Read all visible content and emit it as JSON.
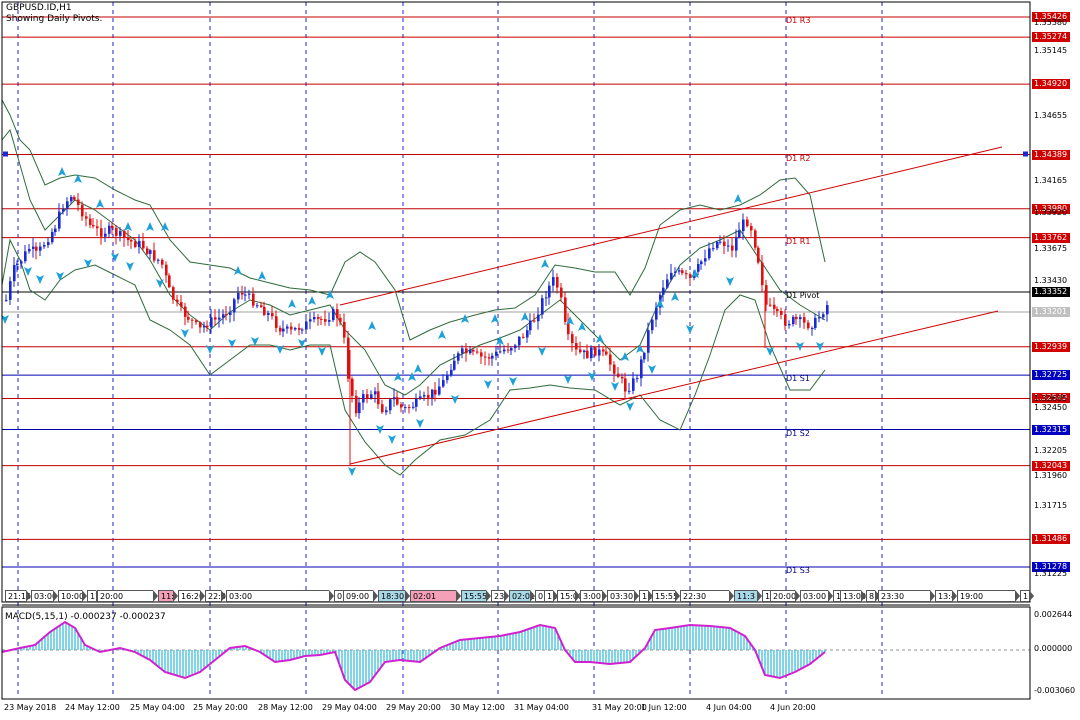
{
  "header": {
    "symbol": "GBPUSD.ID,H1",
    "subtitle": "Showing Daily Pivots."
  },
  "pivots": [
    {
      "name": "D1 R3",
      "price": 1.35426
    },
    {
      "name": "D1 R2",
      "price": 1.34389
    },
    {
      "name": "D1 R1",
      "price": 1.33762
    },
    {
      "name": "D1 Pivot",
      "price": 1.33352
    },
    {
      "name": "D1 S1",
      "price": 1.32725
    },
    {
      "name": "D1 S2",
      "price": 1.32315
    },
    {
      "name": "D1 S3",
      "price": 1.31278
    }
  ],
  "price_labels": [
    {
      "text": "1.35426",
      "price": 1.35426,
      "bg": "#d00000",
      "fg": "#ffffff"
    },
    {
      "text": "1.35274",
      "price": 1.35274,
      "bg": "#d00000",
      "fg": "#ffffff"
    },
    {
      "text": "1.34920",
      "price": 1.3492,
      "bg": "#d00000",
      "fg": "#ffffff"
    },
    {
      "text": "1.34389",
      "price": 1.34389,
      "bg": "#d00000",
      "fg": "#ffffff"
    },
    {
      "text": "1.33980",
      "price": 1.3398,
      "bg": "#d00000",
      "fg": "#ffffff"
    },
    {
      "text": "1.33762",
      "price": 1.33762,
      "bg": "#d00000",
      "fg": "#ffffff"
    },
    {
      "text": "1.33352",
      "price": 1.33352,
      "bg": "#000000",
      "fg": "#ffffff"
    },
    {
      "text": "1.33201",
      "price": 1.33201,
      "bg": "#c0c0c0",
      "fg": "#ffffff"
    },
    {
      "text": "1.32939",
      "price": 1.32939,
      "bg": "#d00000",
      "fg": "#ffffff"
    },
    {
      "text": "1.32725",
      "price": 1.32725,
      "bg": "#0000c0",
      "fg": "#ffffff"
    },
    {
      "text": "1.32549",
      "price": 1.32549,
      "bg": "#d00000",
      "fg": "#ffffff"
    },
    {
      "text": "1.32315",
      "price": 1.32315,
      "bg": "#0000c0",
      "fg": "#ffffff"
    },
    {
      "text": "1.32043",
      "price": 1.32043,
      "bg": "#d00000",
      "fg": "#ffffff"
    },
    {
      "text": "1.31486",
      "price": 1.31486,
      "bg": "#d00000",
      "fg": "#ffffff"
    },
    {
      "text": "1.31278",
      "price": 1.31278,
      "bg": "#0000c0",
      "fg": "#ffffff"
    }
  ],
  "price_ticks": [
    "1.35380",
    "1.35145",
    "1.34655",
    "1.34165",
    "1.33920",
    "1.33675",
    "1.33430",
    "1.32695",
    "1.32450",
    "1.32205",
    "1.31960",
    "1.31715",
    "1.31225"
  ],
  "red_levels": [
    1.35426,
    1.35274,
    1.3492,
    1.34389,
    1.3398,
    1.33762,
    1.32939,
    1.32549,
    1.32043,
    1.31486
  ],
  "blue_levels": [
    1.32725,
    1.32315,
    1.31278
  ],
  "black_levels": [
    1.33352
  ],
  "gray_levels": [
    1.33201
  ],
  "dates": [
    "23 May 2018",
    "24 May 12:00",
    "25 May 04:00",
    "25 May 20:00",
    "28 May 12:00",
    "29 May 04:00",
    "29 May 20:00",
    "30 May 12:00",
    "31 May 04:00",
    "31 May 20:00",
    "1 Jun 12:00",
    "4 Jun 04:00",
    "4 Jun 20:00"
  ],
  "time_tags": [
    {
      "text": "21:15",
      "bg": "#ffffff"
    },
    {
      "text": "03:00",
      "bg": "#ffffff"
    },
    {
      "text": "10:00",
      "bg": "#ffffff"
    },
    {
      "text": "17",
      "bg": "#ffffff"
    },
    {
      "text": "20:00",
      "bg": "#ffffff"
    },
    {
      "text": "11:",
      "bg": "#f4a0b8"
    },
    {
      "text": "16:20",
      "bg": "#ffffff"
    },
    {
      "text": "22:3",
      "bg": "#ffffff"
    },
    {
      "text": "03:00",
      "bg": "#ffffff"
    },
    {
      "text": "0",
      "bg": "#ffffff"
    },
    {
      "text": "09:00",
      "bg": "#ffffff"
    },
    {
      "text": "18:30",
      "bg": "#a8d8e8"
    },
    {
      "text": "02:01",
      "bg": "#f4a0b8"
    },
    {
      "text": "15:55",
      "bg": "#a8d8e8"
    },
    {
      "text": "23",
      "bg": "#ffffff"
    },
    {
      "text": "02:01",
      "bg": "#a8d8e8"
    },
    {
      "text": "0",
      "bg": "#ffffff"
    },
    {
      "text": "11",
      "bg": "#ffffff"
    },
    {
      "text": "15:00",
      "bg": "#ffffff"
    },
    {
      "text": "3:00",
      "bg": "#ffffff"
    },
    {
      "text": "03:30",
      "bg": "#ffffff"
    },
    {
      "text": "11:",
      "bg": "#ffffff"
    },
    {
      "text": "15:55",
      "bg": "#ffffff"
    },
    {
      "text": "22:30",
      "bg": "#ffffff"
    },
    {
      "text": "11:3",
      "bg": "#a8d8e8"
    },
    {
      "text": "1",
      "bg": "#ffffff"
    },
    {
      "text": "20:00",
      "bg": "#ffffff"
    },
    {
      "text": "03:00",
      "bg": "#ffffff"
    },
    {
      "text": "1",
      "bg": "#ffffff"
    },
    {
      "text": "13:00",
      "bg": "#ffffff"
    },
    {
      "text": "8:3",
      "bg": "#ffffff"
    },
    {
      "text": "23:30",
      "bg": "#ffffff"
    },
    {
      "text": "13:4",
      "bg": "#ffffff"
    },
    {
      "text": "19:00",
      "bg": "#ffffff"
    },
    {
      "text": "1",
      "bg": "#ffffff"
    }
  ],
  "macd": {
    "label": "MACD(5,15,1) -0.000237 -0.000237",
    "ticks": [
      "0.002644",
      "0.000000",
      "-0.003060"
    ]
  },
  "colors": {
    "bull": "#1a2ad0",
    "bear": "#e01010",
    "band": "#2e6b3a",
    "trend": "#d00000",
    "arrow": "#1ea0d8",
    "macd_hist": "#3cc0d8",
    "macd_line": "#d020d0"
  },
  "icons": [
    "fractal-up-arrow-icon",
    "fractal-down-arrow-icon",
    "time-tag-arrow-icon"
  ]
}
